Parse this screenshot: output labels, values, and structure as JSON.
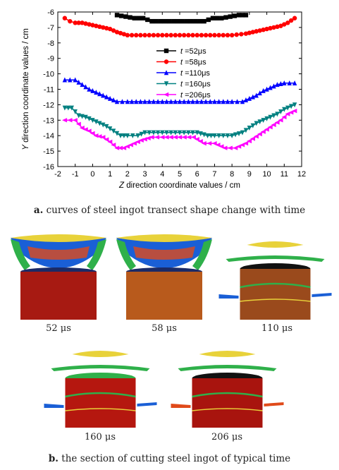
{
  "chart_data": {
    "type": "line",
    "xlabel_prefix": "Z",
    "xlabel_rest": " direction coordinate values / cm",
    "ylabel_prefix": "Y",
    "ylabel_rest": " direction coordinate values / cm",
    "xlim": [
      -2,
      12
    ],
    "ylim": [
      -16,
      -6
    ],
    "xticks": [
      -2,
      -1,
      0,
      1,
      2,
      3,
      4,
      5,
      6,
      7,
      8,
      9,
      10,
      11,
      12
    ],
    "yticks": [
      -6,
      -7,
      -8,
      -9,
      -10,
      -11,
      -12,
      -13,
      -14,
      -15,
      -16
    ],
    "grid": false,
    "legend_position": "center",
    "series": [
      {
        "name": "t=52μs",
        "legend_var": "t",
        "legend_val": "=52",
        "legend_unit": "μs",
        "color": "#000000",
        "marker": "square",
        "x": [
          1.4,
          1.9,
          2.4,
          2.9,
          3.4,
          3.9,
          4.4,
          4.9,
          5.4,
          5.9,
          6.4,
          6.9,
          7.4,
          7.9,
          8.4,
          8.8
        ],
        "y": [
          -6.2,
          -6.3,
          -6.4,
          -6.4,
          -6.6,
          -6.6,
          -6.6,
          -6.6,
          -6.6,
          -6.6,
          -6.6,
          -6.4,
          -6.4,
          -6.3,
          -6.2,
          -6.2
        ]
      },
      {
        "name": "t=58μs",
        "legend_var": "t",
        "legend_val": "=58",
        "legend_unit": "μs",
        "color": "#ff0000",
        "marker": "circle",
        "x": [
          -1.6,
          -1.3,
          -1.0,
          -0.6,
          -0.2,
          0.2,
          0.6,
          1.0,
          1.4,
          2.0,
          3.0,
          4.0,
          5.0,
          6.0,
          7.0,
          8.0,
          8.8,
          9.2,
          9.6,
          10.0,
          10.4,
          10.8,
          11.2,
          11.6
        ],
        "y": [
          -6.4,
          -6.6,
          -6.7,
          -6.7,
          -6.8,
          -6.9,
          -7.0,
          -7.1,
          -7.3,
          -7.5,
          -7.5,
          -7.5,
          -7.5,
          -7.5,
          -7.5,
          -7.5,
          -7.4,
          -7.3,
          -7.2,
          -7.1,
          -7.0,
          -6.9,
          -6.7,
          -6.4
        ]
      },
      {
        "name": "t=110μs",
        "legend_var": "t",
        "legend_val": "=110",
        "legend_unit": "μs",
        "color": "#0000ff",
        "marker": "triangle-up",
        "x": [
          -1.6,
          -1.0,
          -0.6,
          -0.2,
          0.2,
          0.6,
          1.0,
          1.4,
          2.0,
          3.0,
          4.0,
          5.0,
          6.0,
          7.0,
          8.0,
          8.6,
          9.0,
          9.4,
          9.8,
          10.2,
          10.6,
          11.0,
          11.6
        ],
        "y": [
          -10.4,
          -10.4,
          -10.7,
          -11.0,
          -11.2,
          -11.4,
          -11.6,
          -11.8,
          -11.8,
          -11.8,
          -11.8,
          -11.8,
          -11.8,
          -11.8,
          -11.8,
          -11.8,
          -11.6,
          -11.4,
          -11.1,
          -10.9,
          -10.7,
          -10.6,
          -10.6
        ]
      },
      {
        "name": "t=160μs",
        "legend_var": "t",
        "legend_val": "=160",
        "legend_unit": "μs",
        "color": "#008080",
        "marker": "triangle-down",
        "x": [
          -1.6,
          -1.2,
          -0.8,
          -0.4,
          0.0,
          0.4,
          0.8,
          1.2,
          1.6,
          2.0,
          2.6,
          3.0,
          4.0,
          5.0,
          6.0,
          6.6,
          7.0,
          8.0,
          8.6,
          9.0,
          9.4,
          9.8,
          10.2,
          10.6,
          11.0,
          11.6
        ],
        "y": [
          -12.2,
          -12.2,
          -12.7,
          -12.8,
          -13.0,
          -13.2,
          -13.4,
          -13.7,
          -14.0,
          -14.0,
          -14.0,
          -13.8,
          -13.8,
          -13.8,
          -13.8,
          -14.0,
          -14.0,
          -14.0,
          -13.8,
          -13.5,
          -13.2,
          -13.0,
          -12.8,
          -12.6,
          -12.3,
          -12.0
        ]
      },
      {
        "name": "t=206μs",
        "legend_var": "t",
        "legend_val": "=206",
        "legend_unit": "μs",
        "color": "#ff00ff",
        "marker": "triangle-left",
        "x": [
          -1.6,
          -1.0,
          -0.6,
          -0.2,
          0.2,
          0.6,
          1.0,
          1.4,
          1.8,
          2.4,
          2.8,
          3.4,
          4.0,
          5.0,
          5.8,
          6.4,
          7.0,
          7.6,
          8.2,
          8.8,
          9.2,
          9.6,
          10.0,
          10.4,
          10.8,
          11.2,
          11.6
        ],
        "y": [
          -13.0,
          -13.0,
          -13.5,
          -13.7,
          -14.0,
          -14.1,
          -14.4,
          -14.8,
          -14.8,
          -14.5,
          -14.3,
          -14.1,
          -14.1,
          -14.1,
          -14.1,
          -14.5,
          -14.5,
          -14.8,
          -14.8,
          -14.5,
          -14.2,
          -13.9,
          -13.6,
          -13.3,
          -13.0,
          -12.6,
          -12.4
        ]
      }
    ]
  },
  "caption_a": {
    "letter": "a.",
    "text": "curves of steel ingot transect shape change with time"
  },
  "panels": [
    {
      "label": "52 μs",
      "colors": {
        "ingot": "#a71a12",
        "top": "#1a5fd6",
        "wing": "#2fb04a",
        "rim": "#e8d23a",
        "accent": "#e04a1a"
      }
    },
    {
      "label": "58 μs",
      "colors": {
        "ingot": "#b85a1c",
        "top": "#1a5fd6",
        "wing": "#2fb04a",
        "rim": "#e8d23a",
        "accent": "#e04a1a"
      }
    },
    {
      "label": "110 μs",
      "colors": {
        "ingot": "#9a4a1c",
        "top": "#111111",
        "wing": "#2fb04a",
        "rim": "#e8d23a",
        "accent": "#1a5fd6"
      }
    },
    {
      "label": "160 μs",
      "colors": {
        "ingot": "#b5170f",
        "top": "#2fb04a",
        "wing": "#2fb04a",
        "rim": "#e8d23a",
        "accent": "#1a5fd6"
      }
    },
    {
      "label": "206 μs",
      "colors": {
        "ingot": "#a8140e",
        "top": "#111111",
        "wing": "#2fb04a",
        "rim": "#e8d23a",
        "accent": "#e04a1a"
      }
    }
  ],
  "caption_b": {
    "letter": "b.",
    "text": "the section of cutting steel ingot of typical time"
  }
}
